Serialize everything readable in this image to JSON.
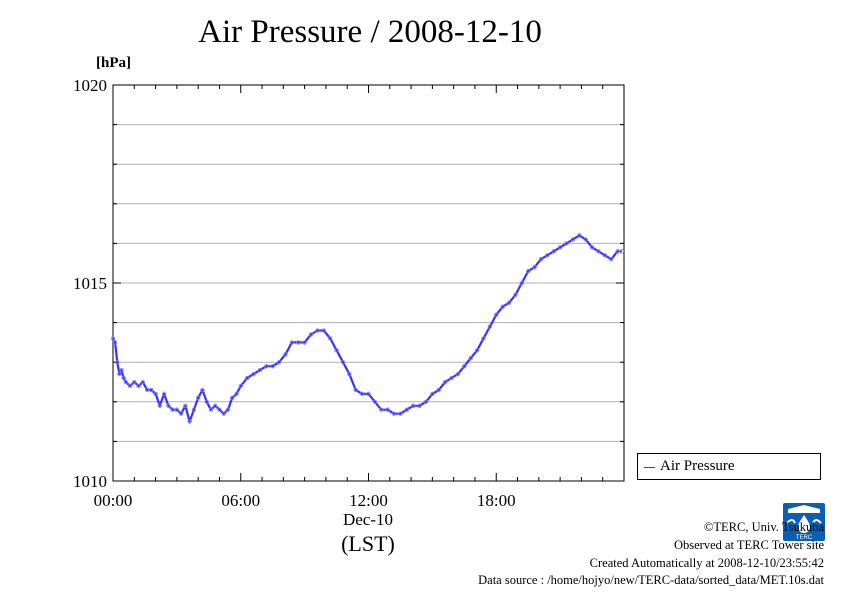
{
  "title": "Air Pressure / 2008-12-10",
  "unit": "[hPa]",
  "legend": {
    "label": "Air Pressure",
    "color": "#3333ff"
  },
  "x_axis": {
    "date_label": "Dec-10",
    "timezone_label": "(LST)"
  },
  "footer": {
    "copyright": "©TERC, Univ. Tsukuba",
    "observed": "Observed at TERC Tower site",
    "created": "Created Automatically at 2008-12-10/23:55:42",
    "source": "Data source : /home/hojyo/new/TERC-data/sorted_data/MET.10s.dat"
  },
  "logo": {
    "icon": "terc-logo-icon",
    "text": "TERC",
    "color": "#0a5fb4"
  },
  "chart_data": {
    "type": "line",
    "title": "Air Pressure / 2008-12-10",
    "ylabel": "[hPa]",
    "xlabel": "Dec-10 (LST)",
    "xlim": [
      0,
      24
    ],
    "ylim": [
      1010,
      1020
    ],
    "x_ticks": [
      {
        "value": 0,
        "label": "00:00"
      },
      {
        "value": 6,
        "label": "06:00"
      },
      {
        "value": 12,
        "label": "12:00"
      },
      {
        "value": 18,
        "label": "18:00"
      }
    ],
    "y_ticks": [
      {
        "value": 1010,
        "label": "1010"
      },
      {
        "value": 1015,
        "label": "1015"
      },
      {
        "value": 1020,
        "label": "1020"
      }
    ],
    "grid": true,
    "legend_position": "outside-right",
    "series": [
      {
        "name": "Air Pressure",
        "color": "#3333ff",
        "x": [
          0.0,
          0.1,
          0.2,
          0.3,
          0.4,
          0.5,
          0.6,
          0.8,
          1.0,
          1.2,
          1.4,
          1.6,
          1.8,
          2.0,
          2.2,
          2.4,
          2.6,
          2.8,
          3.0,
          3.2,
          3.4,
          3.6,
          3.8,
          4.0,
          4.2,
          4.4,
          4.6,
          4.8,
          5.0,
          5.2,
          5.4,
          5.6,
          5.8,
          6.0,
          6.3,
          6.6,
          6.9,
          7.2,
          7.5,
          7.8,
          8.1,
          8.4,
          8.7,
          9.0,
          9.3,
          9.6,
          9.9,
          10.2,
          10.5,
          10.8,
          11.1,
          11.4,
          11.7,
          12.0,
          12.3,
          12.6,
          12.9,
          13.2,
          13.5,
          13.8,
          14.1,
          14.4,
          14.7,
          15.0,
          15.3,
          15.6,
          15.9,
          16.2,
          16.5,
          16.8,
          17.1,
          17.4,
          17.7,
          18.0,
          18.3,
          18.6,
          18.9,
          19.2,
          19.5,
          19.8,
          20.1,
          20.4,
          20.7,
          21.0,
          21.3,
          21.6,
          21.9,
          22.2,
          22.5,
          22.8,
          23.1,
          23.4,
          23.7,
          23.9
        ],
        "y": [
          1013.6,
          1013.5,
          1013.0,
          1012.7,
          1012.8,
          1012.6,
          1012.5,
          1012.4,
          1012.5,
          1012.4,
          1012.5,
          1012.3,
          1012.3,
          1012.2,
          1011.9,
          1012.2,
          1011.9,
          1011.8,
          1011.8,
          1011.7,
          1011.9,
          1011.5,
          1011.8,
          1012.1,
          1012.3,
          1012.0,
          1011.8,
          1011.9,
          1011.8,
          1011.7,
          1011.8,
          1012.1,
          1012.2,
          1012.4,
          1012.6,
          1012.7,
          1012.8,
          1012.9,
          1012.9,
          1013.0,
          1013.2,
          1013.5,
          1013.5,
          1013.5,
          1013.7,
          1013.8,
          1013.8,
          1013.6,
          1013.3,
          1013.0,
          1012.7,
          1012.3,
          1012.2,
          1012.2,
          1012.0,
          1011.8,
          1011.8,
          1011.7,
          1011.7,
          1011.8,
          1011.9,
          1011.9,
          1012.0,
          1012.2,
          1012.3,
          1012.5,
          1012.6,
          1012.7,
          1012.9,
          1013.1,
          1013.3,
          1013.6,
          1013.9,
          1014.2,
          1014.4,
          1014.5,
          1014.7,
          1015.0,
          1015.3,
          1015.4,
          1015.6,
          1015.7,
          1015.8,
          1015.9,
          1016.0,
          1016.1,
          1016.2,
          1016.1,
          1015.9,
          1015.8,
          1015.7,
          1015.6,
          1015.8,
          1015.8
        ]
      }
    ]
  }
}
